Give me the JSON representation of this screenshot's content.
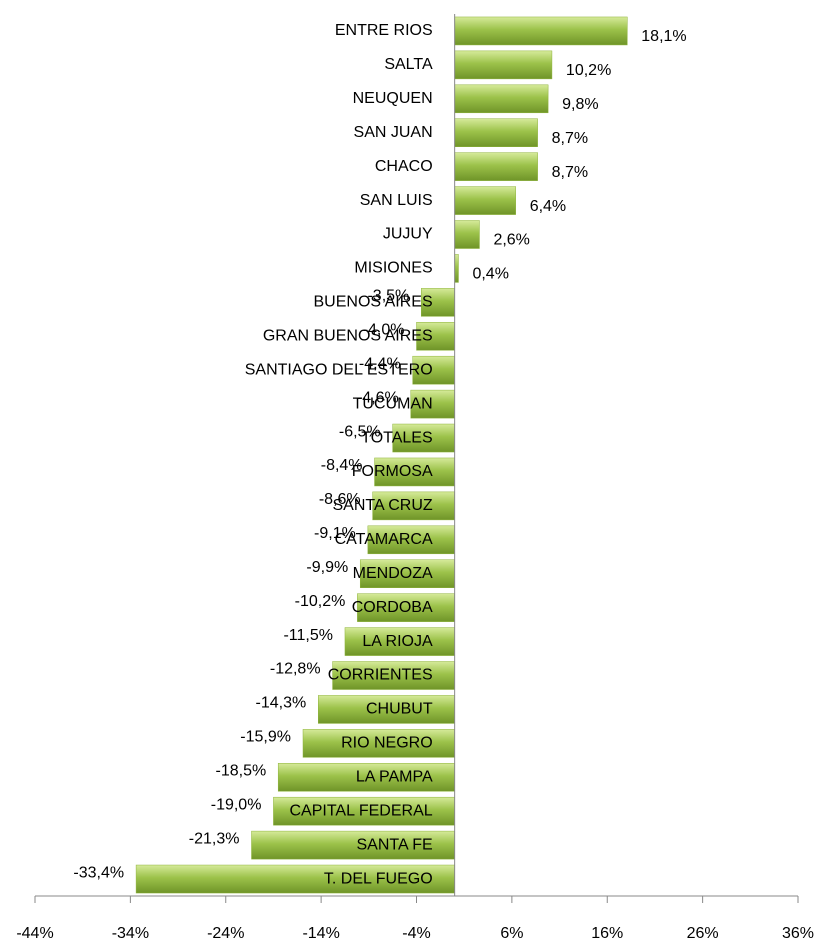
{
  "chart_data": {
    "type": "hbar",
    "categories": [
      "ENTRE RIOS",
      "SALTA",
      "NEUQUEN",
      "SAN JUAN",
      "CHACO",
      "SAN LUIS",
      "JUJUY",
      "MISIONES",
      "BUENOS AIRES",
      "GRAN BUENOS AIRES",
      "SANTIAGO DEL ESTERO",
      "TUCUMAN",
      "TOTALES",
      "FORMOSA",
      "SANTA CRUZ",
      "CATAMARCA",
      "MENDOZA",
      "CORDOBA",
      "LA RIOJA",
      "CORRIENTES",
      "CHUBUT",
      "RIO NEGRO",
      "LA PAMPA",
      "CAPITAL FEDERAL",
      "SANTA FE",
      "T. DEL FUEGO"
    ],
    "values": [
      18.1,
      10.2,
      9.8,
      8.7,
      8.7,
      6.4,
      2.6,
      0.4,
      -3.5,
      -4.0,
      -4.4,
      -4.6,
      -6.5,
      -8.4,
      -8.6,
      -9.1,
      -9.9,
      -10.2,
      -11.5,
      -12.8,
      -14.3,
      -15.9,
      -18.5,
      -19.0,
      -21.3,
      -33.4
    ],
    "value_labels": [
      "18,1%",
      "10,2%",
      "9,8%",
      "8,7%",
      "8,7%",
      "6,4%",
      "2,6%",
      "0,4%",
      "-3,5%",
      "-4,0%",
      "-4,4%",
      "-4,6%",
      "-6,5%",
      "-8,4%",
      "-8,6%",
      "-9,1%",
      "-9,9%",
      "-10,2%",
      "-11,5%",
      "-12,8%",
      "-14,3%",
      "-15,9%",
      "-18,5%",
      "-19,0%",
      "-21,3%",
      "-33,4%"
    ],
    "color": "#8db33a",
    "xlim": [
      -44,
      36
    ],
    "xticks": [
      {
        "value": -44,
        "label": "-44%"
      },
      {
        "value": -34,
        "label": "-34%"
      },
      {
        "value": -24,
        "label": "-24%"
      },
      {
        "value": -14,
        "label": "-14%"
      },
      {
        "value": -4,
        "label": "-4%"
      },
      {
        "value": 6,
        "label": "6%"
      },
      {
        "value": 16,
        "label": "16%"
      },
      {
        "value": 26,
        "label": "26%"
      },
      {
        "value": 36,
        "label": "36%"
      }
    ]
  }
}
